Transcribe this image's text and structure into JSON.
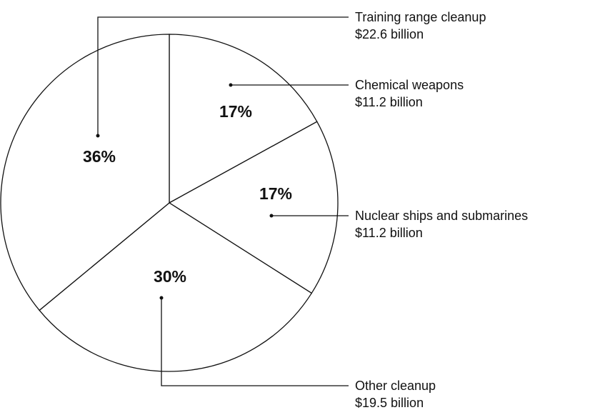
{
  "chart_data": {
    "type": "pie",
    "categories": [
      "Chemical weapons",
      "Nuclear ships and submarines",
      "Other cleanup",
      "Training range cleanup"
    ],
    "values": [
      17,
      17,
      30,
      36
    ],
    "value_labels": [
      "17%",
      "17%",
      "30%",
      "36%"
    ],
    "amounts": [
      "$11.2 billion",
      "$11.2 billion",
      "$19.5 billion",
      "$22.6 billion"
    ],
    "color": "#ffffff"
  }
}
